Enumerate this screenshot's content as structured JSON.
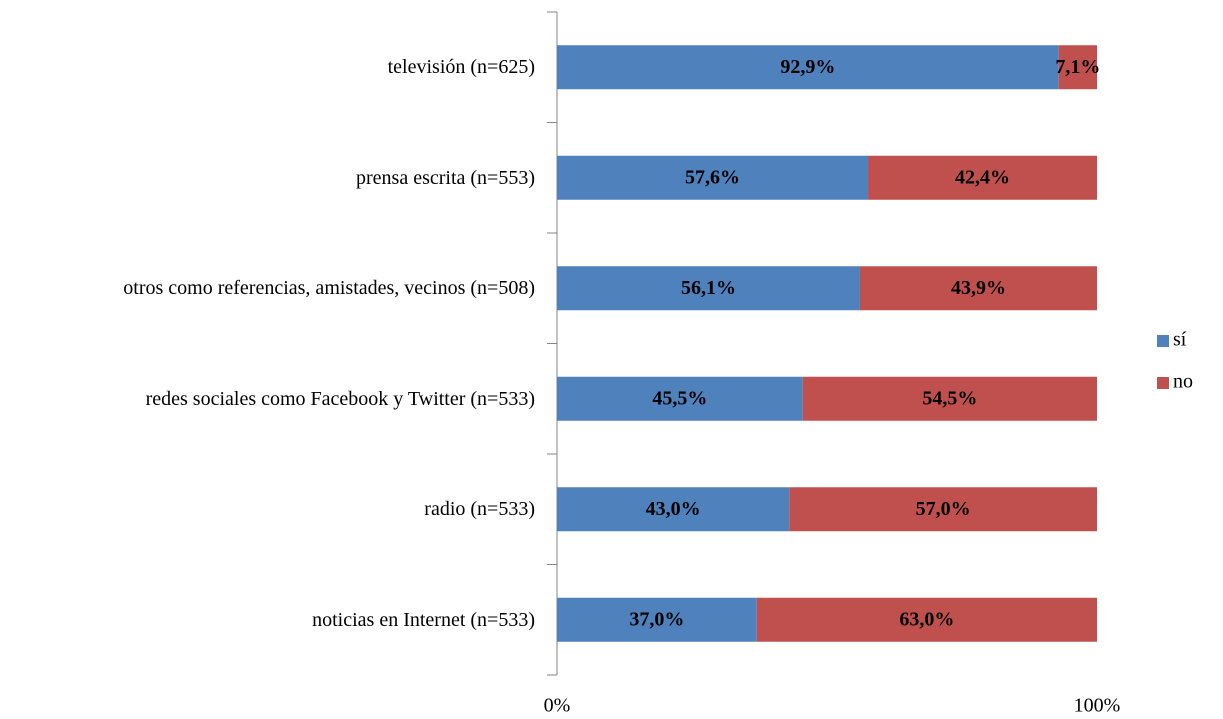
{
  "chart_data": {
    "type": "stacked_bar_horizontal",
    "categories": [
      "televisión (n=625)",
      "prensa escrita (n=553)",
      "otros como referencias, amistades, vecinos (n=508)",
      "redes sociales como Facebook y Twitter (n=533)",
      "radio (n=533)",
      "noticias en Internet (n=533)"
    ],
    "series": [
      {
        "name": "sí",
        "color": "#4f81bd",
        "values": [
          92.9,
          57.6,
          56.1,
          45.5,
          43.0,
          37.0
        ],
        "value_labels": [
          "92,9%",
          "57,6%",
          "56,1%",
          "45,5%",
          "43,0%",
          "37,0%"
        ]
      },
      {
        "name": "no",
        "color": "#c0504d",
        "values": [
          7.1,
          42.4,
          43.9,
          54.5,
          57.0,
          63.0
        ],
        "value_labels": [
          "7,1%",
          "42,4%",
          "43,9%",
          "54,5%",
          "57,0%",
          "63,0%"
        ]
      }
    ],
    "xlim": [
      0,
      100
    ],
    "xticks": [
      {
        "value": 0,
        "label": "0%"
      },
      {
        "value": 100,
        "label": "100%"
      }
    ],
    "legend": "right"
  }
}
